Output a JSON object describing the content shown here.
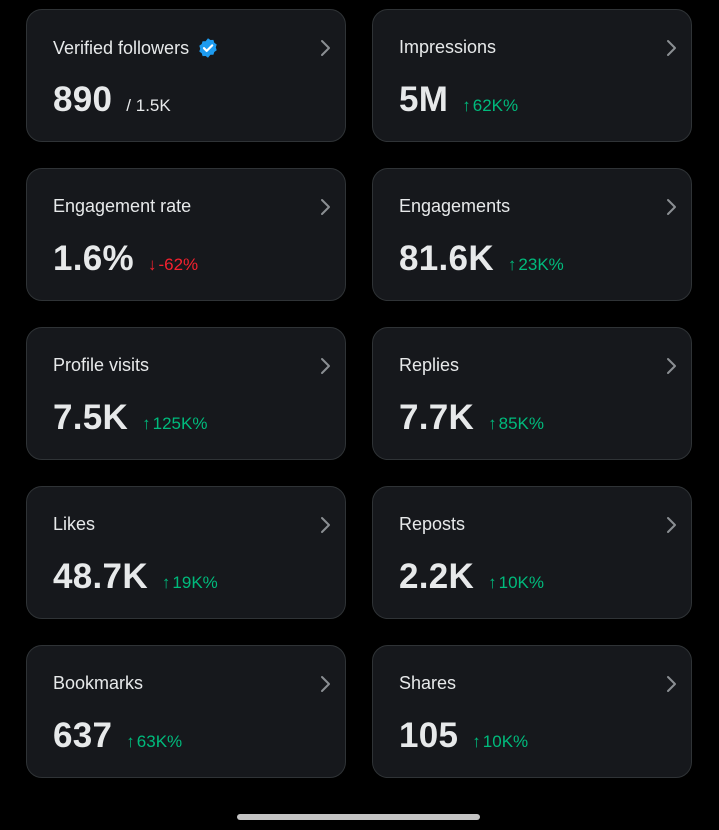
{
  "cards": [
    {
      "title": "Verified followers",
      "verified_badge": true,
      "value": "890",
      "suffix": "/ 1.5K",
      "change": "",
      "direction": "none"
    },
    {
      "title": "Impressions",
      "value": "5M",
      "suffix": "",
      "change": "62K%",
      "direction": "up"
    },
    {
      "title": "Engagement rate",
      "value": "1.6%",
      "suffix": "",
      "change": "-62%",
      "direction": "down"
    },
    {
      "title": "Engagements",
      "value": "81.6K",
      "suffix": "",
      "change": "23K%",
      "direction": "up"
    },
    {
      "title": "Profile visits",
      "value": "7.5K",
      "suffix": "",
      "change": "125K%",
      "direction": "up"
    },
    {
      "title": "Replies",
      "value": "7.7K",
      "suffix": "",
      "change": "85K%",
      "direction": "up"
    },
    {
      "title": "Likes",
      "value": "48.7K",
      "suffix": "",
      "change": "19K%",
      "direction": "up"
    },
    {
      "title": "Reposts",
      "value": "2.2K",
      "suffix": "",
      "change": "10K%",
      "direction": "up"
    },
    {
      "title": "Bookmarks",
      "value": "637",
      "suffix": "",
      "change": "63K%",
      "direction": "up"
    },
    {
      "title": "Shares",
      "value": "105",
      "suffix": "",
      "change": "10K%",
      "direction": "up"
    }
  ],
  "icons": {
    "arrow_up": "↑",
    "arrow_down": "↓",
    "chevron": "chevron-right-icon",
    "verified": "verified-badge-icon"
  },
  "colors": {
    "background": "#000000",
    "card": "#16181c",
    "card_border": "#2f3336",
    "text": "#e7e9ea",
    "positive": "#00ba7c",
    "negative": "#f4212e",
    "verified_blue": "#1d9bf0",
    "home_indicator": "#c4c4c4"
  }
}
